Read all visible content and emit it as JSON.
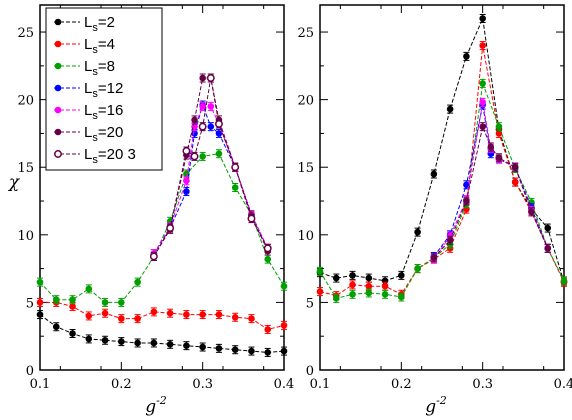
{
  "chart_data": [
    {
      "type": "line",
      "panel": "left",
      "ylabel": "χ",
      "xlabel": "g",
      "xlabel_sup": "-2",
      "xlim": [
        0.1,
        0.4
      ],
      "ylim": [
        0,
        27
      ],
      "xticks": [
        "0.1",
        "0.2",
        "0.3",
        "0.4"
      ],
      "yticks": [
        "0",
        "5",
        "10",
        "15",
        "20",
        "25"
      ],
      "legend_position": "top-left",
      "series": [
        {
          "name": "L_s=2",
          "label_base": "L",
          "label_sub": "s",
          "label_rest": "=2",
          "color": "#000000",
          "open": false,
          "x": [
            0.1,
            0.12,
            0.14,
            0.16,
            0.18,
            0.2,
            0.22,
            0.24,
            0.26,
            0.28,
            0.3,
            0.32,
            0.34,
            0.36,
            0.38,
            0.4
          ],
          "y": [
            4.1,
            3.2,
            2.7,
            2.3,
            2.2,
            2.1,
            2.0,
            2.0,
            1.9,
            1.8,
            1.7,
            1.6,
            1.5,
            1.4,
            1.3,
            1.4
          ]
        },
        {
          "name": "L_s=4",
          "label_base": "L",
          "label_sub": "s",
          "label_rest": "=4",
          "color": "#ff0000",
          "open": false,
          "x": [
            0.1,
            0.12,
            0.14,
            0.16,
            0.18,
            0.2,
            0.22,
            0.24,
            0.26,
            0.28,
            0.3,
            0.32,
            0.34,
            0.36,
            0.38,
            0.4
          ],
          "y": [
            5.0,
            5.0,
            4.7,
            4.0,
            4.2,
            3.8,
            3.8,
            4.3,
            4.2,
            4.1,
            4.1,
            4.1,
            3.9,
            3.8,
            3.0,
            3.3
          ]
        },
        {
          "name": "L_s=8",
          "label_base": "L",
          "label_sub": "s",
          "label_rest": "=8",
          "color": "#00a000",
          "open": false,
          "x": [
            0.1,
            0.12,
            0.14,
            0.16,
            0.18,
            0.2,
            0.22,
            0.24,
            0.26,
            0.28,
            0.3,
            0.32,
            0.34,
            0.36,
            0.38,
            0.4
          ],
          "y": [
            6.5,
            5.2,
            5.2,
            6.0,
            5.0,
            5.0,
            6.5,
            8.4,
            11.0,
            14.5,
            15.8,
            16.0,
            13.5,
            11.5,
            8.2,
            6.2
          ]
        },
        {
          "name": "L_s=12",
          "label_base": "L",
          "label_sub": "s",
          "label_rest": "=12",
          "color": "#0000ff",
          "open": false,
          "x": [
            0.24,
            0.26,
            0.28,
            0.29,
            0.3,
            0.31,
            0.32,
            0.34,
            0.36,
            0.38
          ],
          "y": [
            8.6,
            10.5,
            13.2,
            17.5,
            19.6,
            18.0,
            17.5,
            15.0,
            11.5,
            9.0
          ]
        },
        {
          "name": "L_s=16",
          "label_base": "L",
          "label_sub": "s",
          "label_rest": "=16",
          "color": "#ff00ff",
          "open": false,
          "x": [
            0.24,
            0.26,
            0.28,
            0.29,
            0.3,
            0.31,
            0.32,
            0.34,
            0.36,
            0.38
          ],
          "y": [
            8.6,
            10.6,
            14.0,
            18.0,
            19.5,
            19.5,
            18.2,
            15.0,
            11.5,
            9.0
          ]
        },
        {
          "name": "L_s=20",
          "label_base": "L",
          "label_sub": "s",
          "label_rest": "=20",
          "color": "#660044",
          "open": false,
          "x": [
            0.24,
            0.26,
            0.28,
            0.29,
            0.3,
            0.31,
            0.32,
            0.34,
            0.36,
            0.38
          ],
          "y": [
            8.4,
            10.4,
            15.9,
            18.5,
            21.6,
            21.6,
            18.5,
            15.0,
            11.4,
            8.8
          ]
        },
        {
          "name": "L_s=20 3",
          "label_base": "L",
          "label_sub": "s",
          "label_rest": "=20 3",
          "color": "#660044",
          "open": true,
          "x": [
            0.24,
            0.26,
            0.28,
            0.29,
            0.3,
            0.31,
            0.32,
            0.34,
            0.36,
            0.38
          ],
          "y": [
            8.4,
            10.5,
            16.2,
            15.8,
            18.0,
            21.6,
            18.2,
            15.0,
            11.2,
            9.0
          ]
        }
      ]
    },
    {
      "type": "line",
      "panel": "right",
      "xlabel": "g",
      "xlabel_sup": "-2",
      "xlim": [
        0.1,
        0.4
      ],
      "ylim": [
        0,
        27
      ],
      "xticks": [
        "0.1",
        "0.2",
        "0.3",
        "0.4"
      ],
      "yticks": [
        "0",
        "5",
        "10",
        "15",
        "20",
        "25"
      ],
      "series": [
        {
          "name": "L_s=2",
          "color": "#000000",
          "open": false,
          "x": [
            0.1,
            0.12,
            0.14,
            0.16,
            0.18,
            0.2,
            0.22,
            0.24,
            0.26,
            0.28,
            0.3,
            0.32,
            0.34,
            0.36,
            0.38,
            0.4
          ],
          "y": [
            7.2,
            6.8,
            7.0,
            6.8,
            6.6,
            7.0,
            10.2,
            14.5,
            19.3,
            23.2,
            26.0,
            17.8,
            13.9,
            11.9,
            10.5,
            6.5
          ]
        },
        {
          "name": "L_s=4",
          "color": "#ff0000",
          "open": false,
          "x": [
            0.1,
            0.12,
            0.14,
            0.16,
            0.18,
            0.2,
            0.22,
            0.24,
            0.26,
            0.28,
            0.3,
            0.32,
            0.34,
            0.36,
            0.38,
            0.4
          ],
          "y": [
            5.8,
            5.5,
            6.3,
            6.2,
            6.2,
            5.6,
            7.5,
            8.2,
            9.0,
            11.9,
            24.0,
            17.5,
            13.9,
            11.7,
            9.0,
            6.5
          ]
        },
        {
          "name": "L_s=8",
          "color": "#00a000",
          "open": false,
          "x": [
            0.1,
            0.12,
            0.14,
            0.16,
            0.18,
            0.2,
            0.22,
            0.24,
            0.26,
            0.28,
            0.3,
            0.32,
            0.34,
            0.36,
            0.38,
            0.4
          ],
          "y": [
            7.3,
            5.3,
            5.6,
            5.7,
            5.6,
            5.4,
            7.5,
            8.3,
            9.3,
            12.3,
            21.2,
            18.0,
            14.9,
            12.4,
            9.0,
            6.6
          ]
        },
        {
          "name": "L_s=12",
          "color": "#0000ff",
          "open": false,
          "x": [
            0.24,
            0.26,
            0.28,
            0.3,
            0.31,
            0.32,
            0.34,
            0.36,
            0.38
          ],
          "y": [
            8.4,
            10.0,
            13.7,
            19.6,
            16.0,
            15.6,
            15.0,
            12.0,
            9.0
          ]
        },
        {
          "name": "L_s=16",
          "color": "#ff00ff",
          "open": false,
          "x": [
            0.24,
            0.26,
            0.28,
            0.3,
            0.31,
            0.32,
            0.34,
            0.36,
            0.38
          ],
          "y": [
            8.2,
            9.9,
            12.6,
            19.8,
            16.4,
            15.6,
            15.0,
            11.8,
            9.0
          ]
        },
        {
          "name": "L_s=20",
          "color": "#660044",
          "open": false,
          "x": [
            0.24,
            0.26,
            0.28,
            0.3,
            0.31,
            0.32,
            0.34,
            0.36,
            0.38
          ],
          "y": [
            8.3,
            9.6,
            12.5,
            18.0,
            16.5,
            15.7,
            15.0,
            11.7,
            9.0
          ]
        }
      ]
    }
  ]
}
